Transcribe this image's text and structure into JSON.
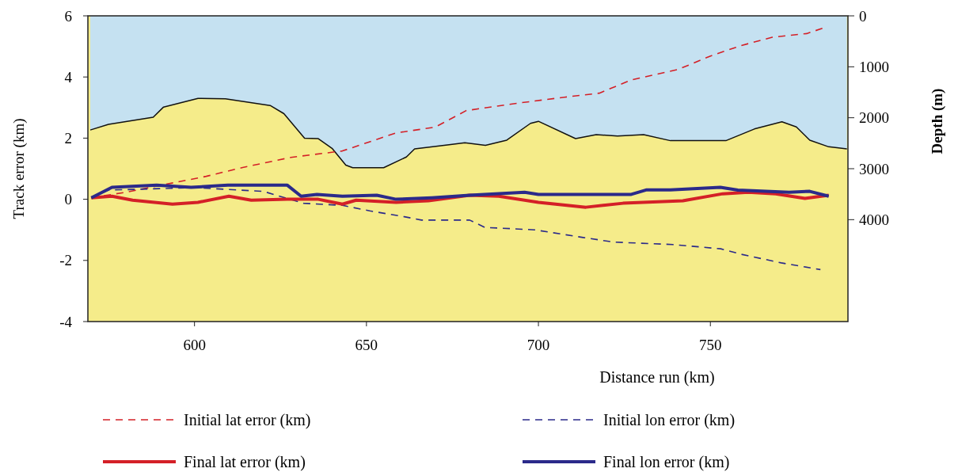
{
  "chart_data": {
    "type": "line",
    "xlabel": "Distance run (km)",
    "ylabel": "Track error (km)",
    "y2label": "Depth (m)",
    "xlim": [
      569,
      790
    ],
    "xticks": [
      600,
      650,
      700,
      750
    ],
    "ylim": [
      -4,
      6
    ],
    "yticks": [
      -4,
      -2,
      0,
      2,
      4,
      6
    ],
    "y2lim": [
      6000,
      0
    ],
    "y2ticks": [
      0,
      1000,
      2000,
      3000,
      4000
    ],
    "grid": false,
    "legend": "bottom",
    "marker": "none",
    "series": [
      {
        "type": "area",
        "axis": "y2",
        "color": "#c5e1f1",
        "x": [
          569.7,
          575,
          588,
          591,
          601,
          609,
          622,
          626,
          632,
          636,
          640,
          644,
          646,
          655,
          661.6,
          664,
          674,
          678.6,
          684.6,
          690.8,
          697.7,
          700,
          710.8,
          716.8,
          723,
          730.6,
          738.4,
          754.5,
          762.8,
          770.8,
          775,
          778.9,
          784.4,
          789.7
        ],
        "values": [
          2240,
          2130,
          1990,
          1790,
          1620,
          1630,
          1760,
          1920,
          2400,
          2410,
          2600,
          2930,
          2980,
          2980,
          2770,
          2610,
          2530,
          2490,
          2540,
          2440,
          2110,
          2070,
          2410,
          2330,
          2360,
          2330,
          2450,
          2450,
          2220,
          2080,
          2180,
          2440,
          2570,
          2610
        ]
      },
      {
        "name": "Initial lat error (km)",
        "color": "#d42027",
        "line_style": "dashed",
        "x": [
          570,
          580,
          603.4,
          614,
          628,
          643,
          658.6,
          670,
          679,
          692.4,
          707.6,
          717.7,
          726.9,
          740.7,
          749.9,
          759,
          768,
          778,
          782.8
        ],
        "values": [
          0.05,
          0.23,
          0.75,
          1.04,
          1.37,
          1.58,
          2.17,
          2.36,
          2.9,
          3.12,
          3.34,
          3.47,
          3.9,
          4.25,
          4.68,
          5.03,
          5.3,
          5.42,
          5.6
        ]
      },
      {
        "name": "Initial lon error (km)",
        "color": "#2b2a8a",
        "line_style": "dashed",
        "x": [
          570,
          575,
          600,
          620,
          631.7,
          643,
          651,
          661,
          666,
          680,
          684.4,
          698.9,
          713,
          721.8,
          739,
          753,
          759,
          770.6,
          782
        ],
        "values": [
          0.05,
          0.3,
          0.38,
          0.26,
          -0.13,
          -0.2,
          -0.38,
          -0.57,
          -0.68,
          -0.68,
          -0.92,
          -1.0,
          -1.25,
          -1.4,
          -1.48,
          -1.62,
          -1.8,
          -2.08,
          -2.3
        ]
      },
      {
        "name": "Final lat error (km)",
        "color": "#d42027",
        "line_style": "solid",
        "x": [
          570,
          576,
          582,
          593.6,
          601,
          610,
          616.5,
          627,
          636,
          643,
          647,
          658.6,
          668,
          680,
          688.5,
          700,
          713.8,
          724.6,
          742,
          753.6,
          761,
          769,
          777.5,
          784.4
        ],
        "values": [
          0.05,
          0.1,
          -0.03,
          -0.16,
          -0.1,
          0.1,
          -0.03,
          0.0,
          0.0,
          -0.16,
          -0.03,
          -0.1,
          -0.05,
          0.13,
          0.1,
          -0.1,
          -0.26,
          -0.13,
          -0.05,
          0.18,
          0.23,
          0.18,
          0.03,
          0.13
        ]
      },
      {
        "name": "Final lon error (km)",
        "color": "#2b2a8a",
        "line_style": "solid",
        "x": [
          570,
          576,
          589,
          599,
          609.7,
          627,
          631,
          635.6,
          643,
          653,
          658.6,
          669,
          680,
          696,
          700,
          727,
          731.5,
          738.4,
          752.9,
          758,
          772.9,
          778.9,
          784.4
        ],
        "values": [
          0.05,
          0.39,
          0.46,
          0.39,
          0.46,
          0.46,
          0.1,
          0.16,
          0.1,
          0.13,
          0.0,
          0.05,
          0.13,
          0.23,
          0.16,
          0.16,
          0.31,
          0.31,
          0.39,
          0.3,
          0.23,
          0.26,
          0.1
        ]
      }
    ]
  }
}
